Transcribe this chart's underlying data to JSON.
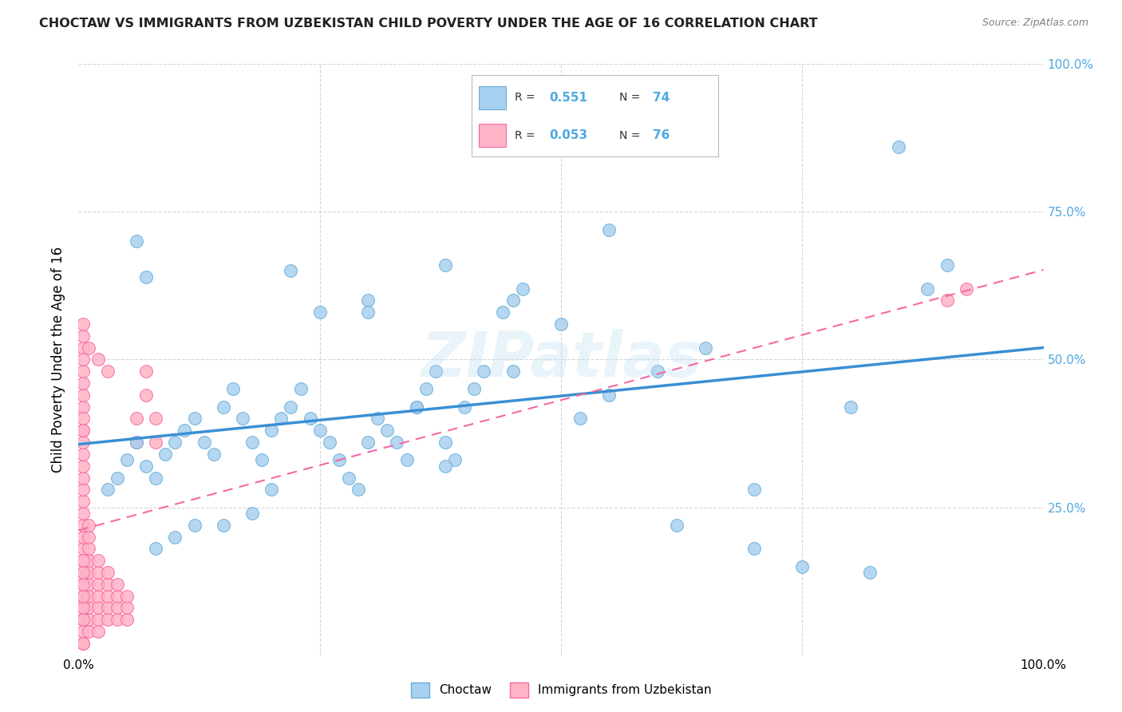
{
  "title": "CHOCTAW VS IMMIGRANTS FROM UZBEKISTAN CHILD POVERTY UNDER THE AGE OF 16 CORRELATION CHART",
  "source": "Source: ZipAtlas.com",
  "ylabel": "Child Poverty Under the Age of 16",
  "xlim": [
    0,
    1
  ],
  "ylim": [
    0,
    1
  ],
  "x_tick_labels": [
    "0.0%",
    "",
    "",
    "",
    "100.0%"
  ],
  "y_tick_labels_right": [
    "",
    "25.0%",
    "50.0%",
    "75.0%",
    "100.0%"
  ],
  "watermark": "ZIPatlas",
  "choctaw_color": "#a8d0f0",
  "uzbekistan_color": "#ffb3c6",
  "choctaw_edge": "#6baed6",
  "uzbekistan_edge": "#f768a1",
  "line_blue": "#3a8fd4",
  "line_pink": "#f768a1",
  "background_color": "#ffffff",
  "grid_color": "#cccccc",
  "title_color": "#222222",
  "right_label_color": "#4fa8e0",
  "legend_color": "#4fa8e0",
  "choctaw_scatter_x": [
    0.03,
    0.04,
    0.05,
    0.06,
    0.07,
    0.08,
    0.09,
    0.1,
    0.11,
    0.12,
    0.13,
    0.14,
    0.15,
    0.16,
    0.17,
    0.18,
    0.19,
    0.2,
    0.21,
    0.22,
    0.23,
    0.24,
    0.25,
    0.26,
    0.27,
    0.28,
    0.29,
    0.3,
    0.31,
    0.32,
    0.33,
    0.34,
    0.35,
    0.36,
    0.37,
    0.38,
    0.39,
    0.4,
    0.41,
    0.42,
    0.44,
    0.45,
    0.46,
    0.5,
    0.52,
    0.55,
    0.6,
    0.65,
    0.7,
    0.8,
    0.85,
    0.9,
    0.22,
    0.25,
    0.3,
    0.35,
    0.38,
    0.45,
    0.2,
    0.15,
    0.1,
    0.08,
    0.12,
    0.18,
    0.3,
    0.38,
    0.55,
    0.62,
    0.7,
    0.75,
    0.82,
    0.88,
    0.07,
    0.06
  ],
  "choctaw_scatter_y": [
    0.28,
    0.3,
    0.33,
    0.36,
    0.32,
    0.3,
    0.34,
    0.36,
    0.38,
    0.4,
    0.36,
    0.34,
    0.42,
    0.45,
    0.4,
    0.36,
    0.33,
    0.38,
    0.4,
    0.42,
    0.45,
    0.4,
    0.38,
    0.36,
    0.33,
    0.3,
    0.28,
    0.36,
    0.4,
    0.38,
    0.36,
    0.33,
    0.42,
    0.45,
    0.48,
    0.36,
    0.33,
    0.42,
    0.45,
    0.48,
    0.58,
    0.6,
    0.62,
    0.56,
    0.4,
    0.44,
    0.48,
    0.52,
    0.28,
    0.42,
    0.86,
    0.66,
    0.65,
    0.58,
    0.6,
    0.42,
    0.32,
    0.48,
    0.28,
    0.22,
    0.2,
    0.18,
    0.22,
    0.24,
    0.58,
    0.66,
    0.72,
    0.22,
    0.18,
    0.15,
    0.14,
    0.62,
    0.64,
    0.7
  ],
  "uzbekistan_scatter_x": [
    0.005,
    0.005,
    0.005,
    0.005,
    0.005,
    0.005,
    0.005,
    0.005,
    0.005,
    0.005,
    0.005,
    0.005,
    0.005,
    0.005,
    0.005,
    0.005,
    0.005,
    0.005,
    0.01,
    0.01,
    0.01,
    0.01,
    0.01,
    0.01,
    0.01,
    0.01,
    0.01,
    0.01,
    0.02,
    0.02,
    0.02,
    0.02,
    0.02,
    0.02,
    0.02,
    0.03,
    0.03,
    0.03,
    0.03,
    0.03,
    0.04,
    0.04,
    0.04,
    0.04,
    0.05,
    0.05,
    0.05,
    0.06,
    0.06,
    0.07,
    0.07,
    0.08,
    0.08,
    0.005,
    0.005,
    0.005,
    0.01,
    0.02,
    0.03,
    0.005,
    0.005,
    0.005,
    0.005,
    0.005,
    0.005,
    0.005,
    0.005,
    0.005,
    0.005,
    0.005,
    0.005,
    0.005,
    0.9,
    0.92,
    0.005,
    0.005
  ],
  "uzbekistan_scatter_y": [
    0.02,
    0.04,
    0.06,
    0.08,
    0.1,
    0.12,
    0.14,
    0.16,
    0.18,
    0.2,
    0.22,
    0.24,
    0.26,
    0.28,
    0.3,
    0.32,
    0.34,
    0.36,
    0.04,
    0.06,
    0.08,
    0.1,
    0.12,
    0.14,
    0.16,
    0.18,
    0.2,
    0.22,
    0.04,
    0.06,
    0.08,
    0.1,
    0.12,
    0.14,
    0.16,
    0.06,
    0.08,
    0.1,
    0.12,
    0.14,
    0.06,
    0.08,
    0.1,
    0.12,
    0.06,
    0.08,
    0.1,
    0.36,
    0.4,
    0.44,
    0.48,
    0.36,
    0.4,
    0.52,
    0.54,
    0.56,
    0.52,
    0.5,
    0.48,
    0.42,
    0.44,
    0.46,
    0.48,
    0.5,
    0.38,
    0.4,
    0.06,
    0.08,
    0.1,
    0.12,
    0.14,
    0.16,
    0.6,
    0.62,
    0.02,
    0.38
  ]
}
